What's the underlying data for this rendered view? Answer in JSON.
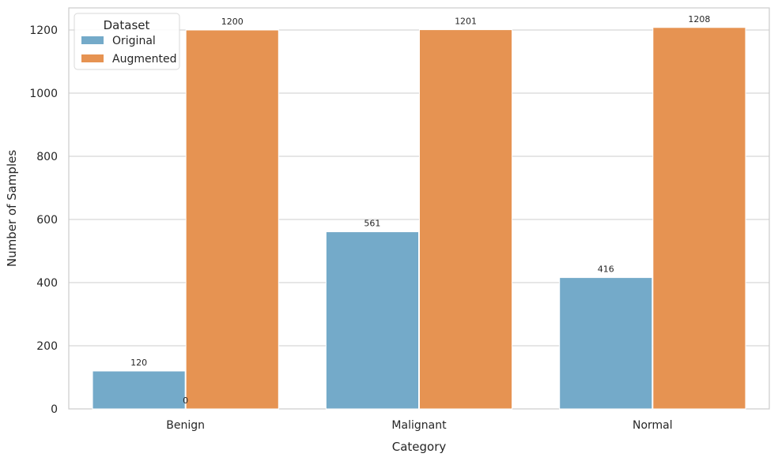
{
  "chart_data": {
    "type": "bar",
    "title": "",
    "xlabel": "Category",
    "ylabel": "Number of Samples",
    "categories": [
      "Benign",
      "Malignant",
      "Normal"
    ],
    "series": [
      {
        "name": "Original",
        "values": [
          120,
          561,
          416
        ],
        "color": "#74aac9"
      },
      {
        "name": "Augmented",
        "values": [
          1200,
          1201,
          1208
        ],
        "color": "#e69352"
      }
    ],
    "data_labels": {
      "Original": [
        "120",
        "561",
        "416"
      ],
      "Augmented": [
        "1200",
        "1201",
        "1208"
      ]
    },
    "extra_annotation": {
      "text": "0",
      "category": "Benign"
    },
    "ylim": [
      0,
      1270
    ],
    "yticks": [
      0,
      200,
      400,
      600,
      800,
      1000,
      1200
    ],
    "grid": "horizontal",
    "legend": {
      "title": "Dataset",
      "placement": "top-left"
    }
  }
}
